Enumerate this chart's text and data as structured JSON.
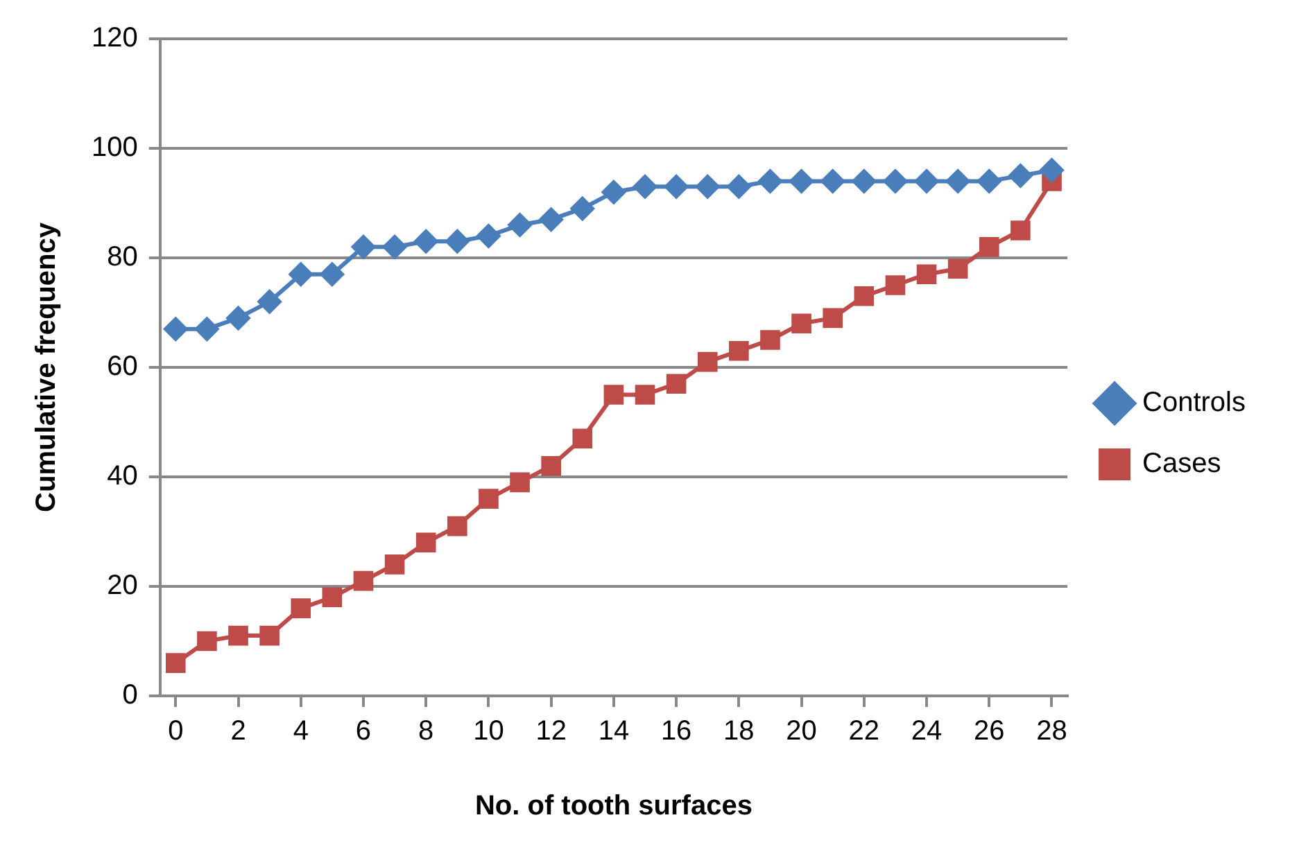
{
  "chart_data": {
    "type": "line",
    "xlabel": "No. of tooth surfaces",
    "ylabel": "Cumulative frequency",
    "x": [
      0,
      1,
      2,
      3,
      4,
      5,
      6,
      7,
      8,
      9,
      10,
      11,
      12,
      13,
      14,
      15,
      16,
      17,
      18,
      19,
      20,
      21,
      22,
      23,
      24,
      25,
      26,
      27,
      28
    ],
    "xlim": [
      -0.5,
      28.5
    ],
    "xticks": [
      0,
      2,
      4,
      6,
      8,
      10,
      12,
      14,
      16,
      18,
      20,
      22,
      24,
      26,
      28
    ],
    "series": [
      {
        "name": "Controls",
        "color": "#4a7ebb",
        "marker": "diamond",
        "values": [
          67,
          67,
          69,
          72,
          77,
          77,
          82,
          82,
          83,
          83,
          84,
          86,
          87,
          89,
          92,
          93,
          93,
          93,
          93,
          94,
          94,
          94,
          94,
          94,
          94,
          94,
          94,
          95,
          96
        ]
      },
      {
        "name": "Cases",
        "color": "#be4b48",
        "marker": "square",
        "values": [
          6,
          10,
          11,
          11,
          16,
          18,
          21,
          24,
          28,
          31,
          36,
          39,
          42,
          47,
          55,
          55,
          57,
          61,
          63,
          65,
          68,
          69,
          73,
          75,
          77,
          78,
          82,
          85,
          94
        ]
      }
    ],
    "ylim": [
      0,
      120
    ],
    "yticks": [
      0,
      20,
      40,
      60,
      80,
      100,
      120
    ],
    "grid": "y",
    "legend": "right"
  }
}
